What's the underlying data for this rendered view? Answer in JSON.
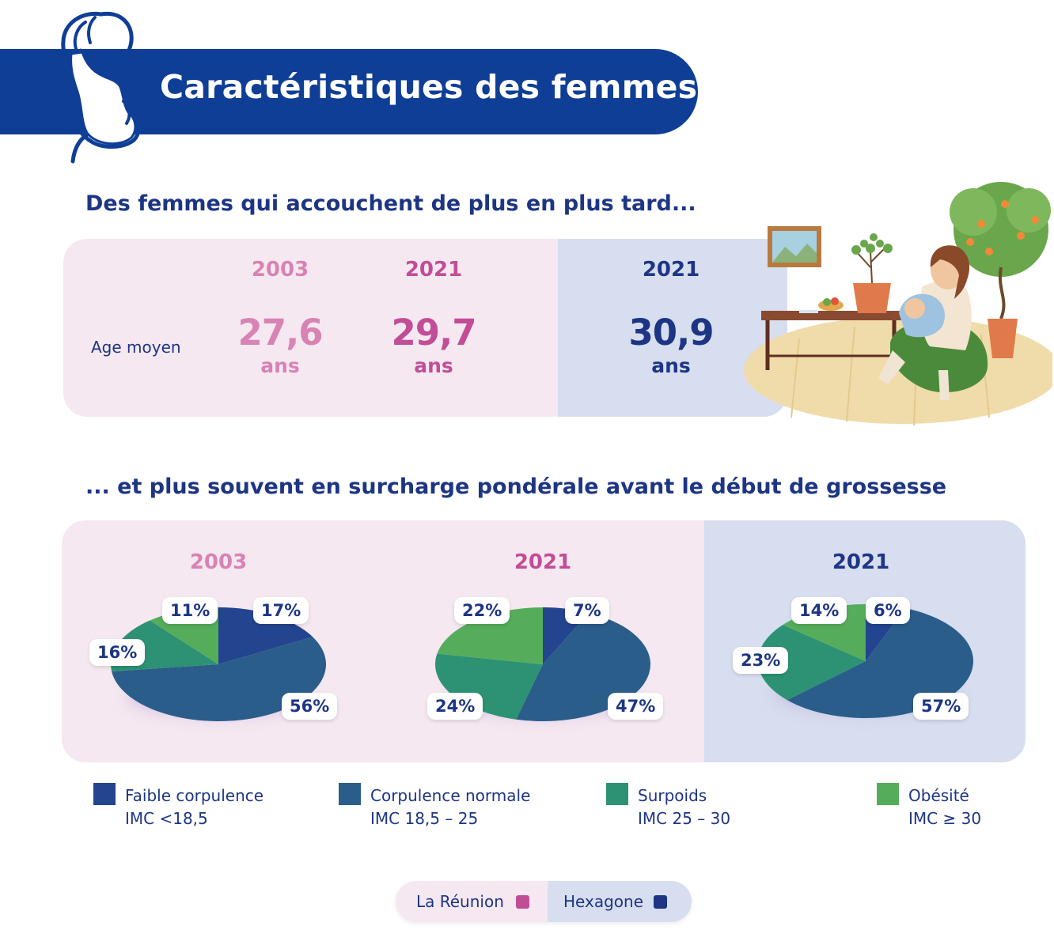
{
  "header": {
    "title": "Caractéristiques des femmes"
  },
  "section1": {
    "title": "Des femmes qui accouchent de plus en plus tard...",
    "row_label": "Age moyen",
    "columns": [
      {
        "year": "2003",
        "value": "27,6",
        "unit": "ans",
        "color": "#d883b4"
      },
      {
        "year": "2021",
        "value": "29,7",
        "unit": "ans",
        "color": "#c24d97"
      },
      {
        "year": "2021",
        "value": "30,9",
        "unit": "ans",
        "color": "#1d3584"
      }
    ]
  },
  "section2": {
    "title": "... et plus souvent en surcharge pondérale avant le début de grossesse"
  },
  "legend": [
    {
      "label": "Faible corpulence",
      "sub": "IMC <18,5",
      "color": "#23448f"
    },
    {
      "label": "Corpulence normale",
      "sub": "IMC 18,5 – 25",
      "color": "#2a5d8a"
    },
    {
      "label": "Surpoids",
      "sub": "IMC 25 – 30",
      "color": "#2d9274"
    },
    {
      "label": "Obésité",
      "sub": "IMC ≥ 30",
      "color": "#55ad5b"
    }
  ],
  "regions": [
    {
      "label": "La Réunion",
      "color": "#c24d97"
    },
    {
      "label": "Hexagone",
      "color": "#1d3584"
    }
  ],
  "chart_data": [
    {
      "type": "pie",
      "title": "2003",
      "categories": [
        "Faible corpulence",
        "Corpulence normale",
        "Surpoids",
        "Obésité"
      ],
      "values": [
        17,
        56,
        16,
        11
      ],
      "labels": [
        "17%",
        "56%",
        "16%",
        "11%"
      ]
    },
    {
      "type": "pie",
      "title": "2021",
      "categories": [
        "Faible corpulence",
        "Corpulence normale",
        "Surpoids",
        "Obésité"
      ],
      "values": [
        7,
        47,
        24,
        22
      ],
      "labels": [
        "7%",
        "47%",
        "24%",
        "22%"
      ]
    },
    {
      "type": "pie",
      "title": "2021",
      "categories": [
        "Faible corpulence",
        "Corpulence normale",
        "Surpoids",
        "Obésité"
      ],
      "values": [
        6,
        57,
        23,
        14
      ],
      "labels": [
        "6%",
        "57%",
        "23%",
        "14%"
      ]
    }
  ]
}
